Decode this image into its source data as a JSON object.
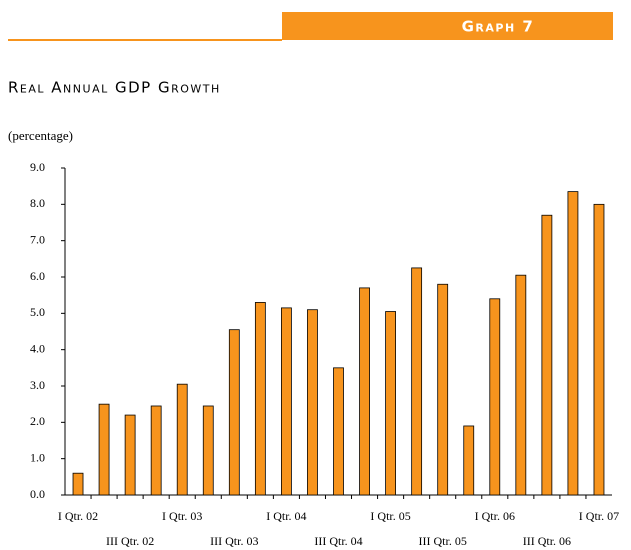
{
  "chart_data": {
    "type": "bar",
    "label": "Graph 7",
    "title": "Real Annual GDP Growth",
    "y_label": "(percentage)",
    "categories": [
      "I Qtr. 02",
      null,
      "III Qtr. 02",
      null,
      "I Qtr. 03",
      null,
      "III Qtr. 03",
      null,
      "I Qtr. 04",
      null,
      "III Qtr. 04",
      null,
      "I Qtr. 05",
      null,
      "III Qtr. 05",
      null,
      "I Qtr. 06",
      null,
      "III Qtr. 06",
      null,
      "I Qtr. 07"
    ],
    "values": [
      0.6,
      2.5,
      2.2,
      2.45,
      3.05,
      2.45,
      4.55,
      5.3,
      5.15,
      5.1,
      3.5,
      5.7,
      5.05,
      6.25,
      5.8,
      1.9,
      5.4,
      6.05,
      7.7,
      8.35,
      8.0
    ],
    "color": "#f7941d",
    "ylim": [
      0,
      9
    ],
    "yticks": [
      {
        "value": 0,
        "label": "0.0"
      },
      {
        "value": 1,
        "label": "1.0"
      },
      {
        "value": 2,
        "label": "2.0"
      },
      {
        "value": 3,
        "label": "3.0"
      },
      {
        "value": 4,
        "label": "4.0"
      },
      {
        "value": 5,
        "label": "5.0"
      },
      {
        "value": 6,
        "label": "6.0"
      },
      {
        "value": 7,
        "label": "7.0"
      },
      {
        "value": 8,
        "label": "8.0"
      },
      {
        "value": 9,
        "label": "9.0"
      }
    ],
    "grid": false
  }
}
